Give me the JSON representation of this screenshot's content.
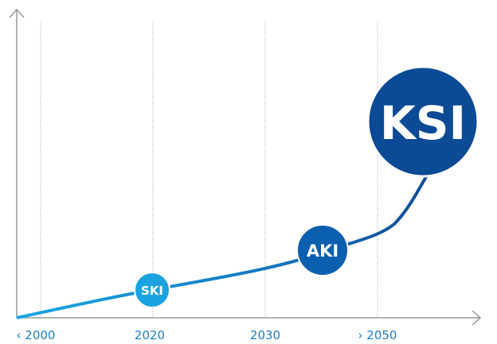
{
  "axis": {
    "labels": [
      "‹ 2000",
      "2020",
      "2030",
      "› 2050"
    ]
  },
  "nodes": [
    {
      "label": "SKI"
    },
    {
      "label": "AKI"
    },
    {
      "label": "KSI"
    }
  ]
}
